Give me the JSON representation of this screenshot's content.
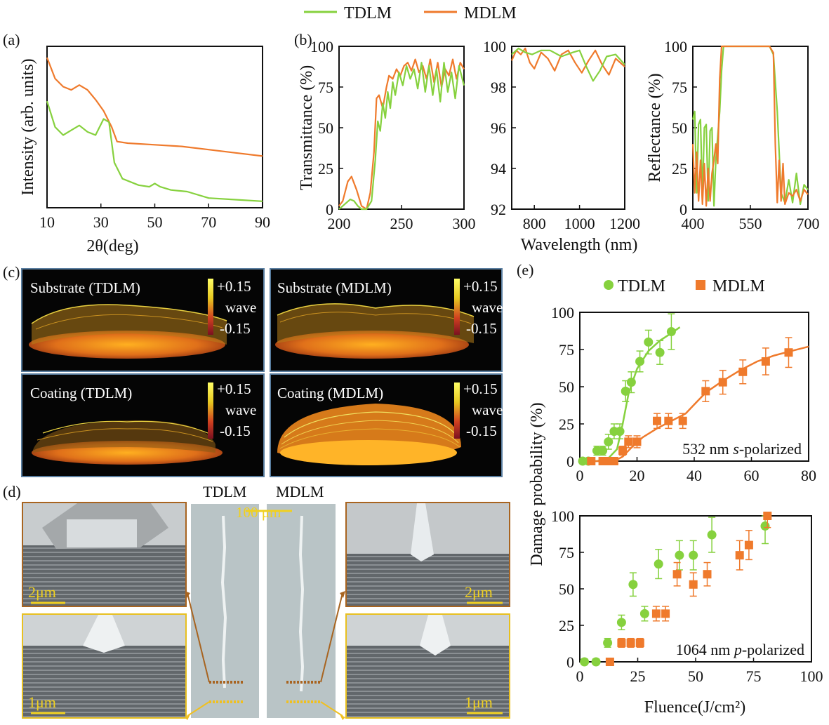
{
  "legend": {
    "top": [
      {
        "label": "TDLM",
        "color": "#86d13e"
      },
      {
        "label": "MDLM",
        "color": "#ef7a2c"
      }
    ],
    "e": [
      {
        "label": "TDLM",
        "color": "#86d13e",
        "marker": "circle"
      },
      {
        "label": "MDLM",
        "color": "#ef7a2c",
        "marker": "square"
      }
    ]
  },
  "colors": {
    "tdlm": "#86d13e",
    "mdlm": "#ef7a2c",
    "axis": "#111111",
    "dark_panel": "#050505"
  },
  "panel_labels": {
    "a": "(a)",
    "b": "(b)",
    "c": "(c)",
    "d": "(d)",
    "e": "(e)"
  },
  "chart_data": [
    {
      "id": "a",
      "type": "line",
      "title": "",
      "xlabel": "2θ(deg)",
      "ylabel": "Intensity (arb. units)",
      "xlim": [
        10,
        90
      ],
      "ylim": [
        0,
        1
      ],
      "xticks": [
        10,
        30,
        50,
        70,
        90
      ],
      "yticks": [],
      "series": [
        {
          "name": "MDLM",
          "x": [
            10,
            13,
            16,
            19,
            22,
            25,
            28,
            31,
            34,
            36,
            40,
            50,
            60,
            70,
            80,
            90
          ],
          "y": [
            0.93,
            0.8,
            0.75,
            0.73,
            0.76,
            0.73,
            0.67,
            0.6,
            0.5,
            0.41,
            0.4,
            0.39,
            0.38,
            0.36,
            0.34,
            0.32
          ]
        },
        {
          "name": "TDLM",
          "x": [
            10,
            13,
            16,
            19,
            22,
            25,
            28,
            31,
            33,
            35,
            38,
            44,
            48,
            50,
            52,
            56,
            62,
            70,
            80,
            90
          ],
          "y": [
            0.66,
            0.5,
            0.45,
            0.48,
            0.51,
            0.47,
            0.45,
            0.55,
            0.53,
            0.28,
            0.18,
            0.14,
            0.13,
            0.15,
            0.13,
            0.11,
            0.1,
            0.06,
            0.05,
            0.04
          ]
        }
      ]
    },
    {
      "id": "b1",
      "type": "line",
      "title": "",
      "xlabel": "",
      "ylabel": "Transmittance (%)",
      "xlim": [
        200,
        300
      ],
      "ylim": [
        0,
        100
      ],
      "xticks": [
        200,
        250,
        300
      ],
      "yticks": [
        0,
        25,
        50,
        75,
        100
      ],
      "series": [
        {
          "name": "MDLM",
          "x": [
            200,
            203,
            207,
            210,
            214,
            218,
            222,
            225,
            228,
            230,
            232,
            235,
            238,
            240,
            243,
            246,
            249,
            252,
            255,
            258,
            261,
            264,
            267,
            270,
            273,
            276,
            279,
            282,
            285,
            288,
            291,
            294,
            297,
            300
          ],
          "y": [
            2,
            5,
            17,
            20,
            12,
            2,
            0,
            10,
            35,
            68,
            70,
            62,
            75,
            82,
            80,
            86,
            82,
            88,
            90,
            85,
            92,
            84,
            88,
            80,
            92,
            78,
            90,
            75,
            86,
            82,
            92,
            80,
            90,
            86
          ]
        },
        {
          "name": "TDLM",
          "x": [
            200,
            203,
            206,
            209,
            212,
            215,
            218,
            222,
            226,
            229,
            231,
            233,
            235,
            237,
            239,
            241,
            243,
            245,
            248,
            251,
            254,
            257,
            260,
            263,
            266,
            269,
            272,
            275,
            278,
            281,
            284,
            287,
            290,
            293,
            296,
            300
          ],
          "y": [
            0,
            2,
            4,
            6,
            5,
            2,
            0,
            0,
            5,
            30,
            54,
            48,
            65,
            56,
            72,
            62,
            78,
            70,
            84,
            76,
            88,
            80,
            86,
            74,
            90,
            72,
            88,
            70,
            86,
            66,
            90,
            72,
            84,
            68,
            88,
            76
          ]
        }
      ]
    },
    {
      "id": "b2",
      "type": "line",
      "title": "",
      "xlabel": "Wavelength (nm)",
      "ylabel": "",
      "xlim": [
        700,
        1200
      ],
      "ylim": [
        92,
        100
      ],
      "xticks": [
        800,
        1000,
        1200
      ],
      "yticks": [
        92,
        94,
        96,
        98,
        100
      ],
      "series": [
        {
          "name": "MDLM",
          "x": [
            700,
            720,
            740,
            760,
            780,
            800,
            830,
            860,
            890,
            920,
            950,
            980,
            1010,
            1040,
            1070,
            1100,
            1130,
            1160,
            1200
          ],
          "y": [
            99.3,
            99.8,
            99.6,
            99.9,
            99.2,
            98.9,
            99.7,
            99.4,
            98.8,
            99.6,
            99.8,
            99.2,
            98.7,
            99.3,
            99.8,
            99.1,
            98.6,
            99.4,
            99.0
          ]
        },
        {
          "name": "TDLM",
          "x": [
            700,
            730,
            760,
            790,
            830,
            870,
            920,
            970,
            1000,
            1030,
            1060,
            1090,
            1120,
            1160,
            1200
          ],
          "y": [
            99.6,
            99.9,
            99.7,
            99.6,
            99.8,
            99.8,
            99.5,
            99.7,
            99.8,
            99.0,
            98.3,
            98.8,
            99.5,
            99.6,
            99.1
          ]
        }
      ]
    },
    {
      "id": "b3",
      "type": "line",
      "title": "",
      "xlabel": "",
      "ylabel": "Reflectance (%)",
      "xlim": [
        400,
        700
      ],
      "ylim": [
        0,
        100
      ],
      "xticks": [
        400,
        550,
        700
      ],
      "yticks": [
        0,
        25,
        50,
        75,
        100
      ],
      "series": [
        {
          "name": "TDLM",
          "x": [
            400,
            405,
            410,
            415,
            420,
            425,
            430,
            435,
            440,
            445,
            450,
            455,
            460,
            465,
            470,
            475,
            480,
            490,
            500,
            510,
            520,
            550,
            580,
            600,
            610,
            620,
            630,
            640,
            650,
            660,
            670,
            680,
            690,
            700
          ],
          "y": [
            55,
            60,
            10,
            52,
            55,
            8,
            50,
            52,
            5,
            48,
            50,
            2,
            30,
            45,
            60,
            85,
            100,
            100,
            100,
            100,
            100,
            100,
            100,
            100,
            95,
            60,
            10,
            4,
            18,
            4,
            22,
            3,
            15,
            12
          ]
        },
        {
          "name": "MDLM",
          "x": [
            400,
            405,
            410,
            415,
            420,
            425,
            430,
            435,
            440,
            445,
            450,
            455,
            460,
            465,
            470,
            475,
            480,
            490,
            500,
            510,
            520,
            550,
            580,
            600,
            610,
            615,
            620,
            625,
            630,
            635,
            640,
            650,
            660,
            670,
            680,
            690,
            700
          ],
          "y": [
            40,
            10,
            35,
            5,
            30,
            3,
            28,
            2,
            25,
            5,
            22,
            30,
            40,
            28,
            80,
            100,
            100,
            100,
            100,
            100,
            100,
            100,
            100,
            100,
            96,
            40,
            4,
            30,
            5,
            28,
            3,
            10,
            8,
            12,
            5,
            12,
            9
          ]
        }
      ]
    },
    {
      "id": "e1",
      "type": "scatter",
      "title": "",
      "xlabel": "",
      "ylabel": "Damage probability (%)",
      "xlim": [
        0,
        80
      ],
      "ylim": [
        0,
        100
      ],
      "xticks": [
        0,
        20,
        40,
        60,
        80
      ],
      "yticks": [
        0,
        25,
        50,
        75,
        100
      ],
      "annotation": "532 nm s-polarized",
      "series": [
        {
          "name": "TDLM",
          "marker": "circle",
          "x": [
            1,
            3,
            6,
            8,
            10,
            12,
            14,
            16,
            18,
            21,
            24,
            28,
            32
          ],
          "y": [
            0,
            0,
            7,
            7,
            13,
            20,
            20,
            47,
            53,
            67,
            80,
            73,
            87
          ],
          "err": [
            2,
            2,
            3,
            3,
            5,
            5,
            5,
            7,
            7,
            7,
            8,
            8,
            12
          ],
          "fit_x": [
            0,
            6,
            10,
            13,
            15,
            17,
            20,
            24,
            28,
            32,
            35
          ],
          "fit_y": [
            0,
            0,
            2,
            8,
            25,
            45,
            62,
            74,
            81,
            86,
            90
          ]
        },
        {
          "name": "MDLM",
          "marker": "square",
          "x": [
            4,
            8,
            10,
            12,
            15,
            17,
            20,
            27,
            31,
            36,
            44,
            50,
            57,
            65,
            73
          ],
          "y": [
            0,
            0,
            0,
            0,
            7,
            13,
            13,
            27,
            27,
            27,
            47,
            53,
            60,
            67,
            73
          ],
          "err": [
            2,
            2,
            2,
            2,
            3,
            4,
            4,
            5,
            5,
            5,
            7,
            8,
            8,
            9,
            10
          ],
          "fit_x": [
            5,
            12,
            15,
            18,
            22,
            27,
            32,
            37,
            40,
            44,
            50,
            56,
            62,
            68,
            74,
            80
          ],
          "fit_y": [
            0,
            0,
            3,
            9,
            16,
            22,
            27,
            32,
            38,
            46,
            54,
            61,
            67,
            71,
            74,
            77
          ]
        }
      ]
    },
    {
      "id": "e2",
      "type": "scatter",
      "title": "",
      "xlabel": "Fluence(J/cm²)",
      "ylabel": "",
      "xlim": [
        0,
        100
      ],
      "ylim": [
        0,
        100
      ],
      "xticks": [
        0,
        25,
        50,
        75,
        100
      ],
      "yticks": [
        0,
        25,
        50,
        75,
        100
      ],
      "annotation": "1064 nm p-polarized",
      "series": [
        {
          "name": "TDLM",
          "marker": "circle",
          "x": [
            2,
            7,
            12,
            18,
            23,
            28,
            34,
            43,
            49,
            57,
            80
          ],
          "y": [
            0,
            0,
            13,
            27,
            53,
            33,
            67,
            73,
            73,
            87,
            93
          ],
          "err": [
            2,
            2,
            3,
            5,
            8,
            5,
            10,
            10,
            10,
            12,
            12
          ]
        },
        {
          "name": "MDLM",
          "marker": "square",
          "x": [
            13,
            18,
            22,
            26,
            33,
            37,
            42,
            49,
            55,
            69,
            73,
            81
          ],
          "y": [
            0,
            13,
            13,
            13,
            33,
            33,
            60,
            53,
            60,
            73,
            80,
            100
          ],
          "err": [
            2,
            3,
            3,
            3,
            5,
            5,
            8,
            8,
            8,
            10,
            10,
            8
          ]
        }
      ]
    }
  ],
  "panel_c": {
    "tiles": [
      {
        "label": "Substrate (TDLM)",
        "scale_top": "+0.15",
        "scale_mid": "wave",
        "scale_bot": "-0.15"
      },
      {
        "label": "Substrate (MDLM)",
        "scale_top": "+0.15",
        "scale_mid": "wave",
        "scale_bot": "-0.15"
      },
      {
        "label": "Coating (TDLM)",
        "scale_top": "+0.15",
        "scale_mid": "wave",
        "scale_bot": "-0.15"
      },
      {
        "label": "Coating (MDLM)",
        "scale_top": "+0.15",
        "scale_mid": "wave",
        "scale_bot": "-0.15"
      }
    ]
  },
  "panel_d": {
    "header_left": "TDLM",
    "header_right": "MDLM",
    "center_scale": "100 μm",
    "scale_tl": "2μm",
    "scale_tr": "2μm",
    "scale_bl": "1μm",
    "scale_br": "1μm"
  }
}
